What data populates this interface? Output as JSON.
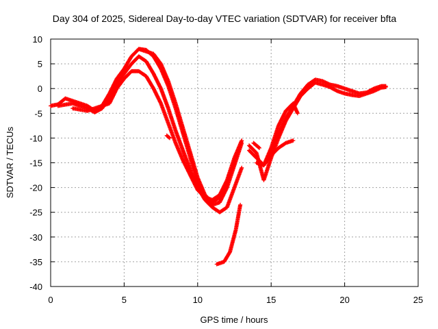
{
  "chart_data": {
    "type": "scatter",
    "title": "Day 304 of 2025, Sidereal Day-to-day VTEC variation (SDTVAR) for receiver bfta",
    "xlabel": "GPS time / hours",
    "ylabel": "SDTVAR / TECUs",
    "xlim": [
      0,
      25
    ],
    "ylim": [
      -40,
      10
    ],
    "x_ticks": [
      0,
      5,
      10,
      15,
      20,
      25
    ],
    "y_ticks": [
      10,
      5,
      0,
      -5,
      -10,
      -15,
      -20,
      -25,
      -30,
      -35,
      -40
    ],
    "grid": true,
    "marker": "+",
    "series": [
      {
        "name": "SDTVAR",
        "color": "#ff0000",
        "tracks": [
          [
            [
              0.0,
              -3.5
            ],
            [
              0.5,
              -3.2
            ],
            [
              1.0,
              -2.0
            ],
            [
              1.5,
              -2.5
            ],
            [
              2.0,
              -3.0
            ],
            [
              2.5,
              -3.5
            ],
            [
              3.0,
              -4.5
            ],
            [
              3.5,
              -3.5
            ],
            [
              4.0,
              -1.0
            ],
            [
              4.5,
              2.0
            ],
            [
              5.0,
              4.0
            ],
            [
              5.5,
              6.5
            ],
            [
              6.0,
              8.0
            ],
            [
              6.5,
              7.8
            ],
            [
              7.0,
              6.5
            ],
            [
              7.5,
              4.0
            ],
            [
              8.0,
              0.5
            ],
            [
              8.5,
              -4.0
            ],
            [
              9.0,
              -9.0
            ],
            [
              9.5,
              -14.0
            ],
            [
              10.0,
              -19.0
            ],
            [
              10.5,
              -22.0
            ],
            [
              11.0,
              -23.5
            ],
            [
              11.5,
              -23.0
            ],
            [
              12.0,
              -20.0
            ],
            [
              12.5,
              -15.5
            ],
            [
              13.0,
              -11.0
            ]
          ],
          [
            [
              0.5,
              -3.5
            ],
            [
              1.5,
              -3.0
            ],
            [
              2.5,
              -4.0
            ],
            [
              3.0,
              -4.8
            ],
            [
              3.5,
              -4.0
            ],
            [
              4.0,
              -2.0
            ],
            [
              4.5,
              1.0
            ],
            [
              5.0,
              3.0
            ],
            [
              5.5,
              5.0
            ],
            [
              6.0,
              6.5
            ],
            [
              6.5,
              5.5
            ],
            [
              7.0,
              3.0
            ],
            [
              7.5,
              0.0
            ],
            [
              8.0,
              -4.0
            ],
            [
              8.5,
              -8.5
            ],
            [
              9.0,
              -12.5
            ],
            [
              9.5,
              -16.5
            ],
            [
              10.0,
              -20.0
            ],
            [
              10.5,
              -22.5
            ],
            [
              11.0,
              -24.0
            ],
            [
              11.5,
              -25.0
            ],
            [
              12.0,
              -24.0
            ],
            [
              12.5,
              -20.0
            ],
            [
              13.0,
              -16.0
            ]
          ],
          [
            [
              1.5,
              -4.0
            ],
            [
              2.5,
              -4.5
            ],
            [
              3.5,
              -3.5
            ],
            [
              4.0,
              -3.0
            ],
            [
              4.5,
              0.0
            ],
            [
              5.0,
              2.0
            ],
            [
              5.5,
              3.5
            ],
            [
              6.0,
              3.5
            ],
            [
              6.5,
              2.5
            ],
            [
              7.0,
              0.0
            ],
            [
              7.5,
              -3.0
            ],
            [
              8.0,
              -7.0
            ],
            [
              8.5,
              -11.0
            ],
            [
              9.0,
              -14.5
            ],
            [
              9.5,
              -17.5
            ],
            [
              10.0,
              -20.5
            ],
            [
              10.5,
              -22.0
            ],
            [
              11.0,
              -22.5
            ],
            [
              11.5,
              -21.5
            ],
            [
              12.0,
              -18.5
            ],
            [
              12.5,
              -14.0
            ],
            [
              13.0,
              -10.5
            ]
          ],
          [
            [
              6.0,
              8.0
            ],
            [
              6.5,
              7.5
            ],
            [
              7.0,
              7.0
            ],
            [
              7.5,
              5.0
            ],
            [
              8.0,
              1.5
            ],
            [
              8.5,
              -3.0
            ],
            [
              9.0,
              -8.0
            ],
            [
              9.5,
              -13.0
            ],
            [
              10.0,
              -18.0
            ],
            [
              10.5,
              -21.5
            ],
            [
              11.0,
              -23.0
            ],
            [
              11.5,
              -22.0
            ],
            [
              12.0,
              -19.0
            ],
            [
              12.5,
              -15.0
            ]
          ],
          [
            [
              11.3,
              -35.5
            ],
            [
              11.8,
              -35.0
            ],
            [
              12.2,
              -33.0
            ],
            [
              12.6,
              -28.5
            ],
            [
              12.9,
              -23.5
            ]
          ],
          [
            [
              7.9,
              -9.5
            ],
            [
              8.1,
              -10.0
            ]
          ],
          [
            [
              13.5,
              -12.5
            ],
            [
              14.0,
              -14.0
            ],
            [
              14.5,
              -15.5
            ],
            [
              15.0,
              -13.0
            ],
            [
              15.5,
              -9.0
            ],
            [
              16.0,
              -6.0
            ],
            [
              16.5,
              -3.5
            ],
            [
              17.0,
              -1.0
            ],
            [
              17.5,
              0.8
            ],
            [
              18.0,
              1.8
            ],
            [
              18.5,
              1.5
            ],
            [
              19.0,
              0.8
            ],
            [
              19.5,
              0.5
            ],
            [
              20.0,
              0.0
            ],
            [
              20.5,
              -0.5
            ],
            [
              21.0,
              -1.0
            ],
            [
              21.5,
              -0.8
            ],
            [
              22.0,
              0.0
            ],
            [
              22.5,
              0.5
            ],
            [
              22.8,
              0.5
            ]
          ],
          [
            [
              13.5,
              -11.5
            ],
            [
              14.0,
              -13.0
            ],
            [
              14.5,
              -18.5
            ],
            [
              15.0,
              -14.0
            ],
            [
              15.5,
              -10.0
            ],
            [
              16.0,
              -6.5
            ],
            [
              16.5,
              -4.0
            ],
            [
              17.0,
              -1.5
            ],
            [
              17.5,
              0.0
            ],
            [
              18.0,
              1.2
            ],
            [
              18.5,
              0.8
            ],
            [
              19.0,
              0.3
            ],
            [
              19.5,
              -0.5
            ],
            [
              20.0,
              -1.0
            ],
            [
              20.5,
              -1.3
            ],
            [
              21.0,
              -1.5
            ],
            [
              21.5,
              -1.0
            ],
            [
              22.0,
              -0.5
            ],
            [
              22.5,
              0.2
            ],
            [
              22.8,
              0.3
            ]
          ],
          [
            [
              14.0,
              -15.0
            ],
            [
              14.5,
              -15.5
            ],
            [
              15.0,
              -12.0
            ],
            [
              15.5,
              -7.5
            ],
            [
              16.0,
              -4.5
            ],
            [
              16.5,
              -3.0
            ],
            [
              16.8,
              -5.0
            ]
          ],
          [
            [
              14.5,
              -15.5
            ],
            [
              15.0,
              -13.5
            ],
            [
              15.5,
              -12.0
            ],
            [
              16.0,
              -11.0
            ],
            [
              16.5,
              -10.5
            ]
          ],
          [
            [
              13.8,
              -11.0
            ],
            [
              14.2,
              -12.0
            ]
          ]
        ]
      }
    ]
  }
}
